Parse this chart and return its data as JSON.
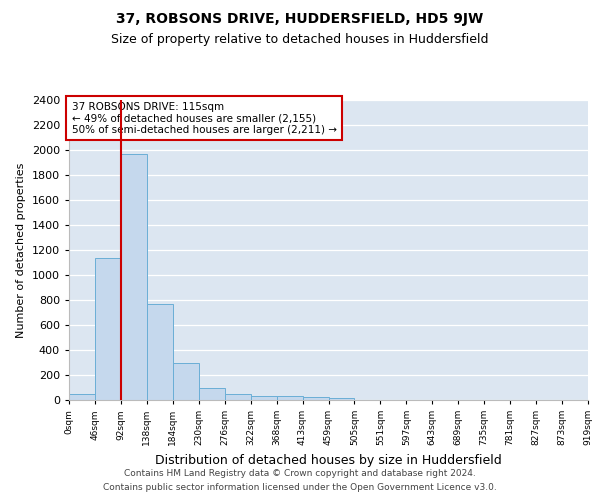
{
  "title": "37, ROBSONS DRIVE, HUDDERSFIELD, HD5 9JW",
  "subtitle": "Size of property relative to detached houses in Huddersfield",
  "xlabel": "Distribution of detached houses by size in Huddersfield",
  "ylabel": "Number of detached properties",
  "bin_labels": [
    "0sqm",
    "46sqm",
    "92sqm",
    "138sqm",
    "184sqm",
    "230sqm",
    "276sqm",
    "322sqm",
    "368sqm",
    "413sqm",
    "459sqm",
    "505sqm",
    "551sqm",
    "597sqm",
    "643sqm",
    "689sqm",
    "735sqm",
    "781sqm",
    "827sqm",
    "873sqm",
    "919sqm"
  ],
  "bar_values": [
    50,
    1140,
    1970,
    770,
    300,
    100,
    50,
    35,
    30,
    25,
    20,
    0,
    0,
    0,
    0,
    0,
    0,
    0,
    0,
    0,
    0
  ],
  "bar_color": "#c5d8ed",
  "bar_edge_color": "#6aaed6",
  "background_color": "#dce6f1",
  "grid_color": "#ffffff",
  "ylim": [
    0,
    2400
  ],
  "yticks": [
    0,
    200,
    400,
    600,
    800,
    1000,
    1200,
    1400,
    1600,
    1800,
    2000,
    2200,
    2400
  ],
  "vline_color": "#cc0000",
  "annotation_text": "37 ROBSONS DRIVE: 115sqm\n← 49% of detached houses are smaller (2,155)\n50% of semi-detached houses are larger (2,211) →",
  "annotation_box_color": "#cc0000",
  "footer_line1": "Contains HM Land Registry data © Crown copyright and database right 2024.",
  "footer_line2": "Contains public sector information licensed under the Open Government Licence v3.0.",
  "title_fontsize": 10,
  "subtitle_fontsize": 9,
  "ylabel_fontsize": 8,
  "xlabel_fontsize": 9
}
